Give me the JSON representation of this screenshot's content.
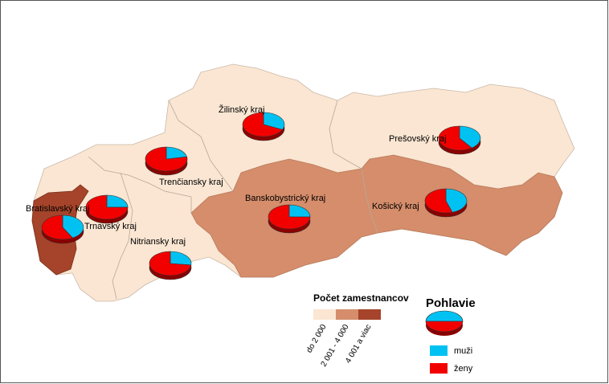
{
  "regions": [
    {
      "name": "Žilinský kraj",
      "values": [
        32,
        68
      ]
    },
    {
      "name": "Prešovský kraj",
      "values": [
        40,
        60
      ]
    },
    {
      "name": "Trenčiansky kraj",
      "values": [
        22,
        78
      ]
    },
    {
      "name": "Trnavský kraj",
      "values": [
        25,
        75
      ]
    },
    {
      "name": "Bratislavský kraj",
      "values": [
        42,
        58
      ]
    },
    {
      "name": "Banskobystrický kraj",
      "values": [
        25,
        75
      ]
    },
    {
      "name": "Košický kraj",
      "values": [
        45,
        55
      ]
    },
    {
      "name": "Nitriansky kraj",
      "values": [
        27,
        73
      ]
    }
  ],
  "employee_legend": {
    "title": "Počet zamestnancov",
    "classes": [
      {
        "label": "do 2 000",
        "color": "#fae6d2"
      },
      {
        "label": "2 001 - 4 000",
        "color": "#d58d6b"
      },
      {
        "label": "4 001 a viac",
        "color": "#a5442a"
      }
    ]
  },
  "gender_legend": {
    "title": "Pohlavie",
    "series": [
      {
        "name": "muži",
        "color": "#00c2f2"
      },
      {
        "name": "ženy",
        "color": "#f20000"
      }
    ]
  }
}
